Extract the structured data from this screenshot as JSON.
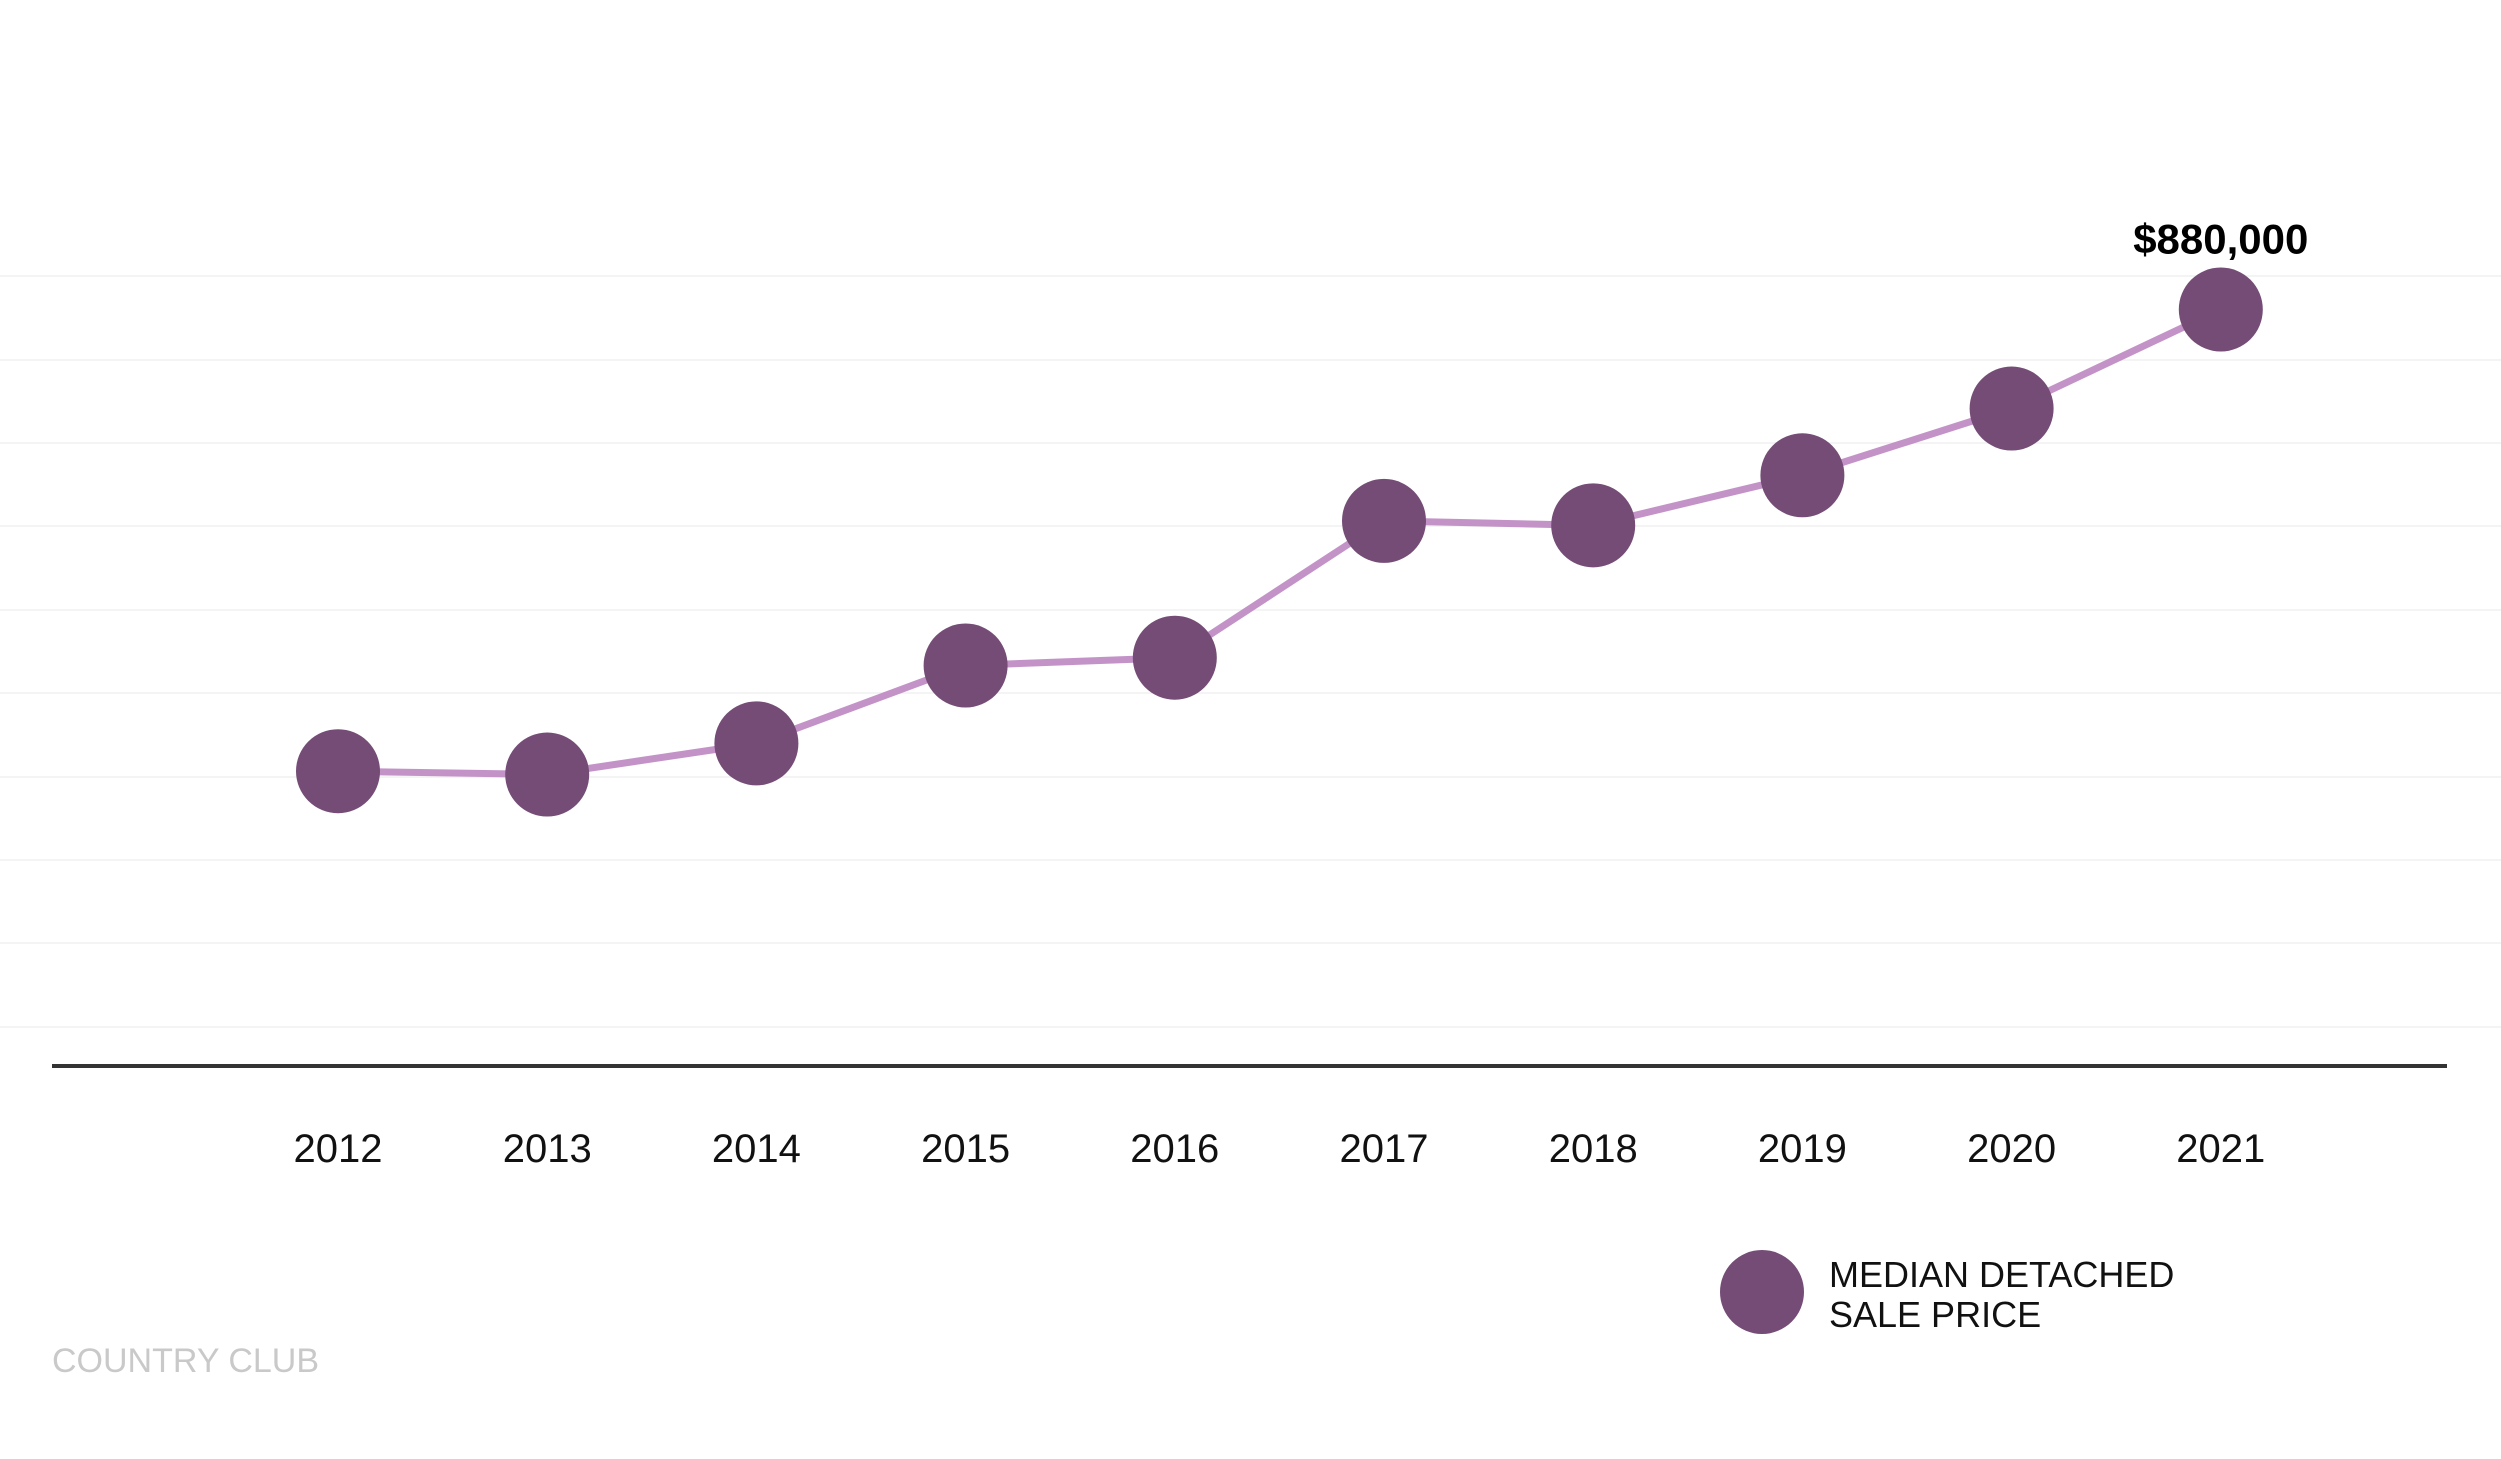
{
  "chart_data": {
    "type": "line",
    "x": [
      "2012",
      "2013",
      "2014",
      "2015",
      "2016",
      "2017",
      "2018",
      "2019",
      "2020",
      "2021"
    ],
    "series": [
      {
        "name": "MEDIAN DETACHED SALE PRICE",
        "values": [
          465000,
          462000,
          490000,
          560000,
          567000,
          690000,
          686000,
          731000,
          791000,
          880000
        ]
      }
    ],
    "annotations": [
      {
        "x": "2021",
        "text": "$880,000"
      }
    ],
    "ylim": [
      200000,
      1000000
    ],
    "grid": true,
    "legend": {
      "position": "bottom-right",
      "lines": [
        "MEDIAN DETACHED",
        "SALE PRICE"
      ]
    },
    "footer": "COUNTRY CLUB",
    "colors": {
      "line": "#c393c8",
      "marker": "#744c76",
      "grid": "#f4f4f4",
      "axis": "#333333",
      "footer": "#c9c9c9"
    }
  }
}
